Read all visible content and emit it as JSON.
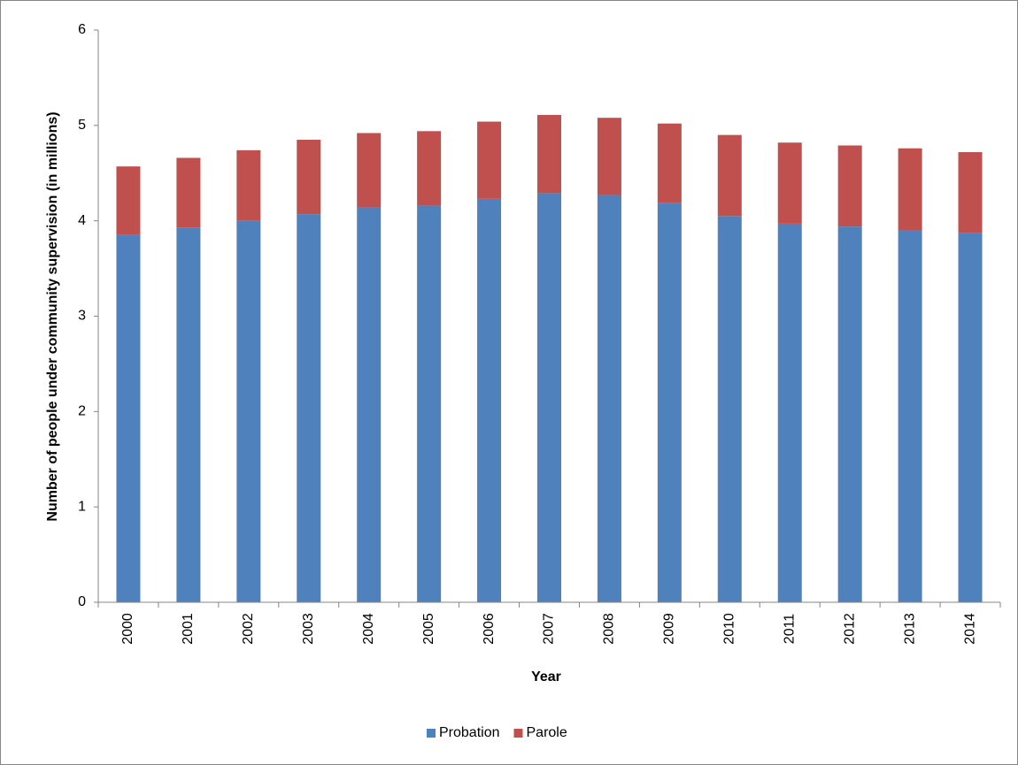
{
  "chart_data": {
    "type": "stacked_bar",
    "x_label": "Year",
    "y_label": "Number of people under community supervision (in millions)",
    "categories": [
      "2000",
      "2001",
      "2002",
      "2003",
      "2004",
      "2005",
      "2006",
      "2007",
      "2008",
      "2009",
      "2010",
      "2011",
      "2012",
      "2013",
      "2014"
    ],
    "series": [
      {
        "name": "Probation",
        "color": "#4f81bd",
        "values": [
          3.85,
          3.93,
          4.0,
          4.07,
          4.14,
          4.16,
          4.23,
          4.29,
          4.27,
          4.19,
          4.05,
          3.97,
          3.94,
          3.9,
          3.87
        ]
      },
      {
        "name": "Parole",
        "color": "#c0504d",
        "values": [
          0.72,
          0.73,
          0.74,
          0.78,
          0.78,
          0.78,
          0.81,
          0.82,
          0.81,
          0.83,
          0.85,
          0.85,
          0.85,
          0.86,
          0.85
        ]
      }
    ],
    "ylim": [
      0,
      6
    ],
    "yticks": [
      0,
      1,
      2,
      3,
      4,
      5,
      6
    ],
    "grid": false,
    "legend": "bottom"
  }
}
